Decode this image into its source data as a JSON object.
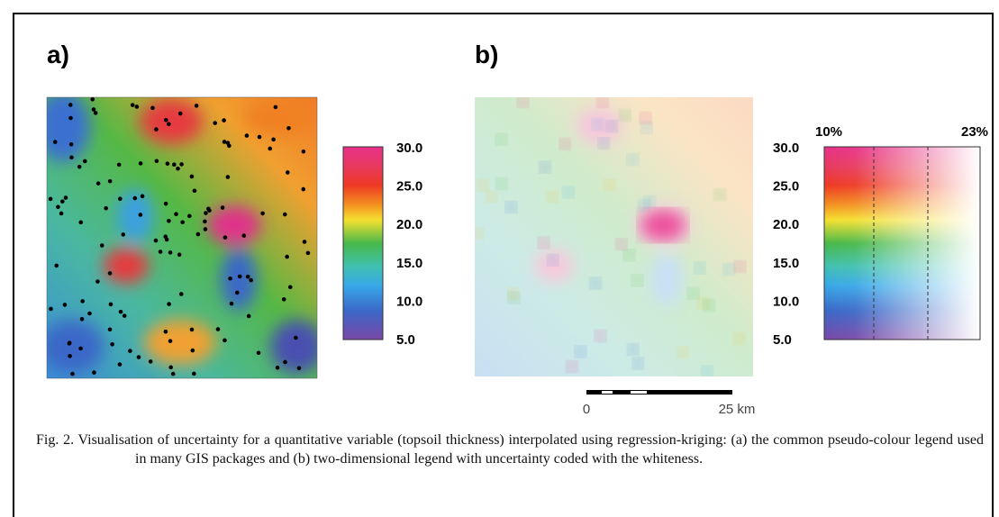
{
  "panels": [
    {
      "label": "a)",
      "legend_ticks": [
        "30.0",
        "25.0",
        "20.0",
        "15.0",
        "10.0",
        "5.0"
      ]
    },
    {
      "label": "b)",
      "legend_ticks": [
        "30.0",
        "25.0",
        "20.0",
        "15.0",
        "10.0",
        "5.0"
      ],
      "uncertainty_labels": [
        "10%",
        "23%"
      ],
      "scale_labels": [
        "0",
        "25 km"
      ]
    }
  ],
  "caption": "Fig. 2. Visualisation of uncertainty for a quantitative variable (topsoil thickness) interpolated using regression-kriging: (a) the common pseudo-colour legend used in many GIS packages and (b) two-dimensional legend with uncertainty coded with the whiteness."
}
